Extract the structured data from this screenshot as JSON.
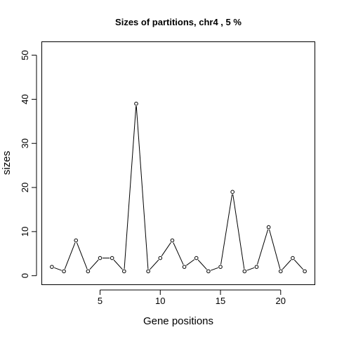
{
  "chart_data": {
    "type": "line",
    "title": "Sizes of partitions, chr4 , 5 %",
    "xlabel": "Gene positions",
    "ylabel": "sizes",
    "x": [
      1,
      2,
      3,
      4,
      5,
      6,
      7,
      8,
      9,
      10,
      11,
      12,
      13,
      14,
      15,
      16,
      17,
      18,
      19,
      20,
      21,
      22
    ],
    "values": [
      2,
      1,
      8,
      1,
      4,
      4,
      1,
      39,
      1,
      4,
      8,
      2,
      4,
      1,
      2,
      19,
      1,
      2,
      11,
      1,
      4,
      1
    ],
    "xlim": [
      0.16,
      22.84
    ],
    "ylim": [
      -2.04,
      53.04
    ],
    "xticks": [
      5,
      10,
      15,
      20
    ],
    "yticks": [
      0,
      10,
      20,
      30,
      40,
      50
    ],
    "grid": false,
    "markers": "open-circle"
  }
}
